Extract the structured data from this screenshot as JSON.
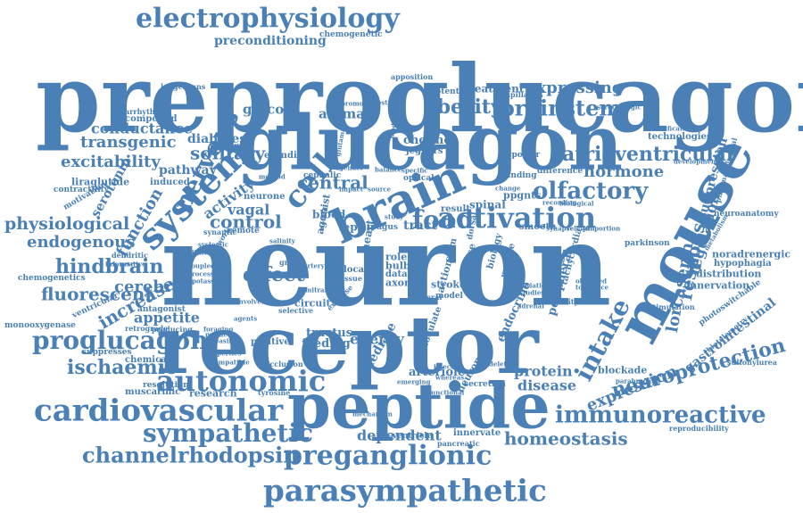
{
  "accent_color": "#4a80b5",
  "background_color": "#ffffff",
  "words": {
    "preproglucagon": "preproglucagon",
    "glucagon": "glucagon",
    "neuron": "neuron",
    "receptor": "receptor",
    "peptide": "peptide",
    "mouse": "mouse",
    "brain": "brain",
    "system": "system",
    "electrophysiology": "electrophysiology",
    "activation": "activation",
    "autonomic": "autonomic",
    "cardiovascular": "cardiovascular",
    "parasympathetic": "parasympathetic",
    "preganglionic": "preganglionic",
    "immunoreactive": "immunoreactive",
    "sympathetic": "sympathetic",
    "channelrhodopsin": "channelrhodopsin",
    "proglucagon": "proglucagon",
    "brainstem": "brainstem",
    "obesity": "obesity",
    "atrioventricular": "atrioventricular",
    "olfactory": "olfactory",
    "neuroprotection": "neuroprotection",
    "nervous": "nervous",
    "cell": "cell",
    "intake": "intake",
    "expression": "expression",
    "ischaemic": "ischaemic",
    "homeostasis": "homeostasis",
    "dependent": "dependent",
    "food": "food",
    "central": "central",
    "control": "control",
    "effect": "effect",
    "increase": "increase",
    "hindbrain": "hindbrain",
    "cerebral": "cerebral",
    "fluorescent": "fluorescent",
    "physiological": "physiological",
    "endogenous": "endogenous",
    "excitability": "excitability",
    "transgenic": "transgenic",
    "conductance": "conductance",
    "solitary": "solitary",
    "function": "function",
    "response": "response",
    "expressing": "expressing",
    "hormone": "hormone",
    "energy": "energy",
    "vagal": "vagal",
    "activity": "activity",
    "appetite": "appetite",
    "protein": "protein",
    "disease": "disease",
    "lorcaserin": "lorcaserin",
    "regulation": "regulation",
    "suppression": "suppression",
    "gastrointestinal": "gastrointestinal",
    "preconditioning": "preconditioning",
    "chemogenetic": "chemogenetic",
    "diabetes": "diabetes",
    "glucose": "glucose",
    "animal": "animal",
    "serotonin": "serotonin",
    "pathway": "pathway",
    "liraglutide": "liraglutide",
    "contractility": "contractility",
    "induced": "induced",
    "motivation": "motivation",
    "compound": "compound",
    "arrhythmia": "arrhythmia",
    "langerhans": "langerhans",
    "chemogenetics": "chemogenetics",
    "monooxygenase": "monooxygenase",
    "ventricular": "ventricular",
    "antagonist": "antagonist",
    "retrograde": "retrograde",
    "producing": "producing",
    "suppresses": "suppresses",
    "chemical": "chemical",
    "resolution": "resolution",
    "muscarinic": "muscarinic",
    "research": "research",
    "tyrosine": "tyrosine",
    "ventricle": "ventricle",
    "pancreatic": "pancreatic",
    "innervate": "innervate",
    "reproducibility": "reproducibility",
    "blockade": "blockade",
    "innervation": "innervation",
    "hypophagia": "hypophagia",
    "distribution": "distribution",
    "noradrenergic": "noradrenergic",
    "parkinson": "parkinson",
    "neuroanatomy": "neuroanatomy",
    "pharmacological": "pharmacological",
    "technologies": "technologies",
    "identification": "identification",
    "serotonergic": "serotonergic",
    "development": "development",
    "treatment": "treatment",
    "potential": "potential",
    "capillaries": "capillaries",
    "apposition": "apposition",
    "choline": "choline",
    "jeghers": "jeghers",
    "reporter": "reporter",
    "difference": "difference",
    "funding": "funding",
    "ppgnts": "ppgnts",
    "biological": "biological",
    "recording": "recording",
    "spinal": "spinal",
    "smooth": "smooth",
    "result": "result",
    "tract": "tract",
    "leptin": "leptin",
    "blood": "blood",
    "agonist": "agonist",
    "neurone": "neurone",
    "exendin": "exendin",
    "cephalic": "cephalic",
    "remote": "remote",
    "dendritic": "dendritic",
    "circuit": "circuit",
    "positive": "positive",
    "feeding": "feeding",
    "tractus": "tractus",
    "mediate": "mediate",
    "arteriole": "arteriole",
    "neuronal": "neuronal",
    "endocrine": "endocrine",
    "modulate": "modulate",
    "secretion": "secretion",
    "peripheral": "peripheral",
    "model": "model",
    "axon": "axon",
    "data": "data",
    "bulb": "bulb",
    "role": "role",
    "stroke": "stroke",
    "action": "action",
    "stem": "stem",
    "heart": "heart",
    "local": "local",
    "phase": "phase",
    "biology": "biology",
    "muscle": "muscle",
    "tachycardia": "tachycardia",
    "issue": "issue",
    "occlusion": "occlusion",
    "stimulation": "stimulation",
    "capacity": "capacity",
    "photoswitchable": "photoswitchable",
    "sulfonylurea": "sulfonylurea",
    "biotelemetry": "biotelemetry",
    "parabrachial": "parabrachial",
    "metabolism": "metabolism",
    "controlling": "controlling",
    "optical": "optical",
    "balance": "balance",
    "dorsal": "dorsal",
    "vagus": "vagus",
    "selective": "selective",
    "exercise": "exercise",
    "lateral": "lateral",
    "involved": "involved",
    "medullary": "medullary",
    "glutamate": "glutamate",
    "network": "network",
    "synaptic": "synaptic",
    "mechanism": "mechanism",
    "functional": "functional",
    "emerging": "emerging",
    "deletion": "deletion",
    "injection": "injection",
    "whereas": "whereas",
    "adrenal": "adrenal",
    "satiation": "satiation",
    "studies": "studies",
    "observed": "observed",
    "tolerance": "tolerance",
    "informative": "informative",
    "imaging": "imaging",
    "gain": "gain",
    "coupled": "coupled",
    "increases": "increases",
    "potassium": "potassium",
    "process": "process",
    "pituitary": "pituitary",
    "releasing": "releasing",
    "properties": "properties",
    "compatible": "compatible",
    "foraging": "foraging",
    "prolactin": "prolactin",
    "agents": "agents",
    "mitral": "mitral",
    "cortex": "cortex",
    "systemic": "systemic",
    "method": "method",
    "impact": "impact",
    "source": "source",
    "gender": "gender",
    "specific": "specific",
    "control2": "control",
    "study": "study",
    "surgery": "surgery",
    "change": "change",
    "proportion": "proportion",
    "synapse": "synapse",
    "relevant": "relevant",
    "intestinal": "intestinal",
    "promoter": "promoter",
    "population": "population",
    "modification": "modification",
    "neural": "neural",
    "tracing": "tracing",
    "salinity": "salinity",
    "group": "group",
    "artery": "artery",
    "nucleus": "nucleus",
    "hypothalamic": "hypothalamic",
    "lateral2": "lateral",
    "fibers": "fibers"
  }
}
